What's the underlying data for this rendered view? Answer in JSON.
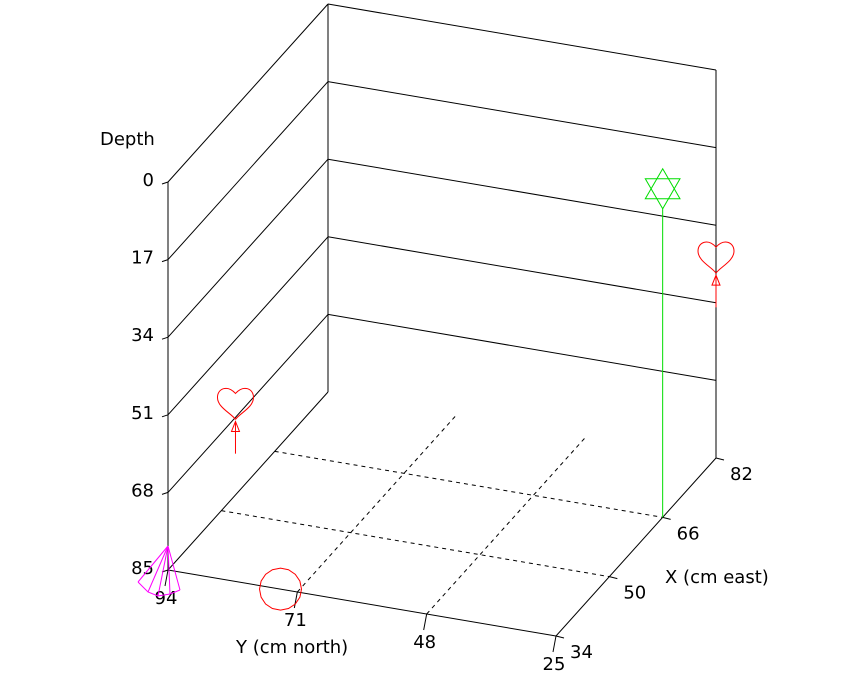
{
  "chart_data": {
    "type": "scatter",
    "projection": "3d",
    "title": "",
    "axes": {
      "depth": {
        "label": "Depth",
        "ticks": [
          0,
          17,
          34,
          51,
          68,
          85
        ],
        "range": [
          0,
          85
        ],
        "inverted": true
      },
      "y": {
        "label": "Y (cm north)",
        "ticks": [
          94,
          71,
          48,
          25
        ],
        "range": [
          25,
          94
        ]
      },
      "x": {
        "label": "X (cm east)",
        "ticks": [
          34,
          50,
          66,
          82
        ],
        "range": [
          34,
          82
        ]
      }
    },
    "grid": {
      "walls": true,
      "floor": "dashed"
    },
    "points": [
      {
        "marker": "heart-with-arrow",
        "color": "#ff0000",
        "x": 34,
        "y": 82,
        "depth": 46,
        "floor_depth": 57
      },
      {
        "marker": "circle",
        "color": "#ff0000",
        "x": 34,
        "y": 74,
        "depth": 85
      },
      {
        "marker": "heart-with-arrow",
        "color": "#ff0000",
        "x": 82,
        "y": 25,
        "depth": 41,
        "floor_depth": 52
      },
      {
        "marker": "star-of-david",
        "color": "#00dd00",
        "x": 66,
        "y": 25,
        "depth": 13,
        "floor_depth": 85
      },
      {
        "marker": "pyramid",
        "color": "#ff00ff",
        "x": 34,
        "y": 94,
        "depth": 85
      }
    ]
  }
}
